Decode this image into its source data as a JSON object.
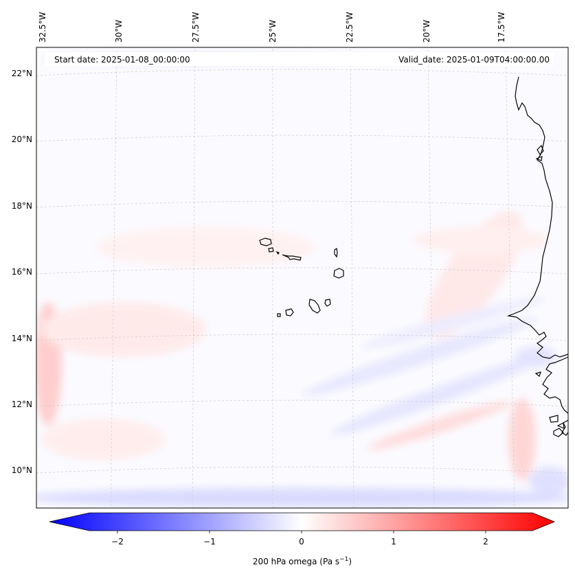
{
  "map": {
    "projection": "lambert-conformal",
    "header": {
      "start_date": "Start date: 2025-01-08_00:00:00",
      "valid_date": "Valid_date: 2025-01-09T04:00:00.00"
    },
    "longitude_labels": [
      "32.5°W",
      "30°W",
      "27.5°W",
      "25°W",
      "22.5°W",
      "20°W",
      "17.5°W"
    ],
    "latitude_labels": [
      "22°N",
      "20°N",
      "18°N",
      "16°N",
      "14°N",
      "12°N",
      "10°N"
    ],
    "features": [
      "Cape Verde islands",
      "West African coastline"
    ],
    "colorbar": {
      "label_main": "200 hPa omega (Pa s",
      "label_sup": "−1",
      "label_end": ")",
      "ticks": [
        "−2",
        "−1",
        "0",
        "1",
        "2"
      ],
      "min": -2.6,
      "max": 2.6,
      "colormap": "bwr",
      "low_color": "#0000ff",
      "mid_color": "#ffffff",
      "high_color": "#ff0000"
    }
  }
}
